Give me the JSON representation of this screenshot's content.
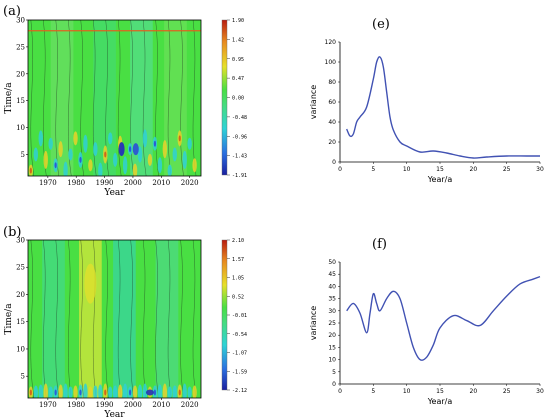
{
  "chart_data": [
    {
      "panel": "(a)",
      "type": "heatmap",
      "xlabel": "Year",
      "ylabel": "Time/a",
      "xlim": [
        1963,
        2024
      ],
      "ylim": [
        1,
        30
      ],
      "xticks": [
        "1970",
        "1980",
        "1990",
        "2000",
        "2010",
        "2020"
      ],
      "yticks": [
        "5",
        "10",
        "15",
        "20",
        "25",
        "30"
      ],
      "colorbar": [
        "1.90",
        "1.42",
        "0.95",
        "0.47",
        "0.00",
        "-0.48",
        "-0.96",
        "-1.43",
        "-1.91"
      ],
      "colors": {
        "high": "#b81c10",
        "mid": "#49df43",
        "low": "#1a1f9f"
      }
    },
    {
      "panel": "(b)",
      "type": "heatmap",
      "xlabel": "Year",
      "ylabel": "Time/a",
      "xlim": [
        1963,
        2024
      ],
      "ylim": [
        1,
        30
      ],
      "xticks": [
        "1970",
        "1980",
        "1990",
        "2000",
        "2010",
        "2020"
      ],
      "yticks": [
        "5",
        "10",
        "15",
        "20",
        "25",
        "30"
      ],
      "colorbar": [
        "2.10",
        "1.57",
        "1.05",
        "0.52",
        "-0.01",
        "-0.54",
        "-1.07",
        "-1.59",
        "-2.12"
      ],
      "colors": {
        "high": "#b81c10",
        "mid": "#49df43",
        "low": "#1a1f9f"
      }
    },
    {
      "panel": "(e)",
      "type": "line",
      "xlabel": "Year/a",
      "ylabel": "variance",
      "xlim": [
        0,
        30
      ],
      "ylim": [
        0,
        120
      ],
      "xticks": [
        "0",
        "5",
        "10",
        "15",
        "20",
        "25",
        "30"
      ],
      "yticks": [
        "0",
        "20",
        "40",
        "60",
        "80",
        "100",
        "120"
      ],
      "x": [
        1,
        1.5,
        2,
        2.5,
        3,
        4,
        5,
        5.5,
        6,
        6.5,
        7,
        7.5,
        8,
        9,
        10,
        12,
        14,
        16,
        18,
        20,
        22,
        25,
        28,
        30
      ],
      "y": [
        33,
        26,
        28,
        40,
        45,
        55,
        83,
        100,
        105,
        95,
        70,
        45,
        32,
        20,
        16,
        10,
        11,
        9,
        6,
        4,
        5,
        6,
        6,
        6
      ]
    },
    {
      "panel": "(f)",
      "type": "line",
      "xlabel": "Year/a",
      "ylabel": "variance",
      "xlim": [
        0,
        30
      ],
      "ylim": [
        0,
        50
      ],
      "xticks": [
        "0",
        "5",
        "10",
        "15",
        "20",
        "25",
        "30"
      ],
      "yticks": [
        "0",
        "5",
        "10",
        "15",
        "20",
        "25",
        "30",
        "35",
        "40",
        "45",
        "50"
      ],
      "x": [
        1,
        2,
        3,
        4,
        4.5,
        5,
        5.5,
        6,
        7,
        8,
        9,
        10,
        11,
        12,
        13,
        14,
        15,
        17,
        19,
        21,
        23,
        25,
        27,
        29,
        30
      ],
      "y": [
        30,
        33,
        29,
        21,
        29,
        37,
        33,
        30,
        35,
        38,
        35,
        25,
        15,
        10,
        11,
        16,
        23,
        28,
        26,
        24,
        30,
        36,
        41,
        43,
        44
      ]
    }
  ]
}
